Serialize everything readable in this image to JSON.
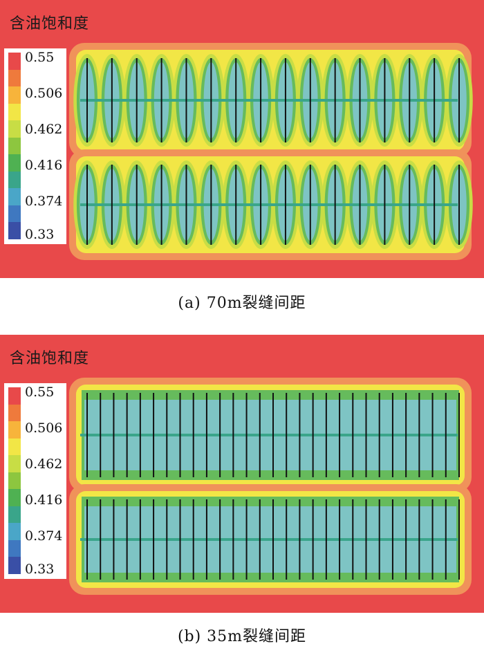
{
  "panels": [
    {
      "title": "含油饱和度",
      "caption": "(a) 70m裂缝间距",
      "fracture_count": 16,
      "well_count": 2
    },
    {
      "title": "含油饱和度",
      "caption": "(b) 35m裂缝间距",
      "fracture_count": 29,
      "well_count": 2
    }
  ],
  "legend": {
    "ticks": [
      "0.55",
      "0.506",
      "0.462",
      "0.416",
      "0.374",
      "0.33"
    ],
    "colors": [
      "#e8494a",
      "#ef7a3c",
      "#f7b43b",
      "#f2e646",
      "#c8dd45",
      "#8dc63f",
      "#4fb152",
      "#3aa58a",
      "#4aa6c8",
      "#3f78c0",
      "#3a4fa6"
    ]
  },
  "colors": {
    "background": "#e8494a",
    "orange": "#f0925a",
    "yellow": "#f2e646",
    "lime": "#c8dd45",
    "green": "#66bb5c",
    "teal": "#7ec4c4",
    "well": "#3aa58a",
    "fracture": "#111111"
  }
}
